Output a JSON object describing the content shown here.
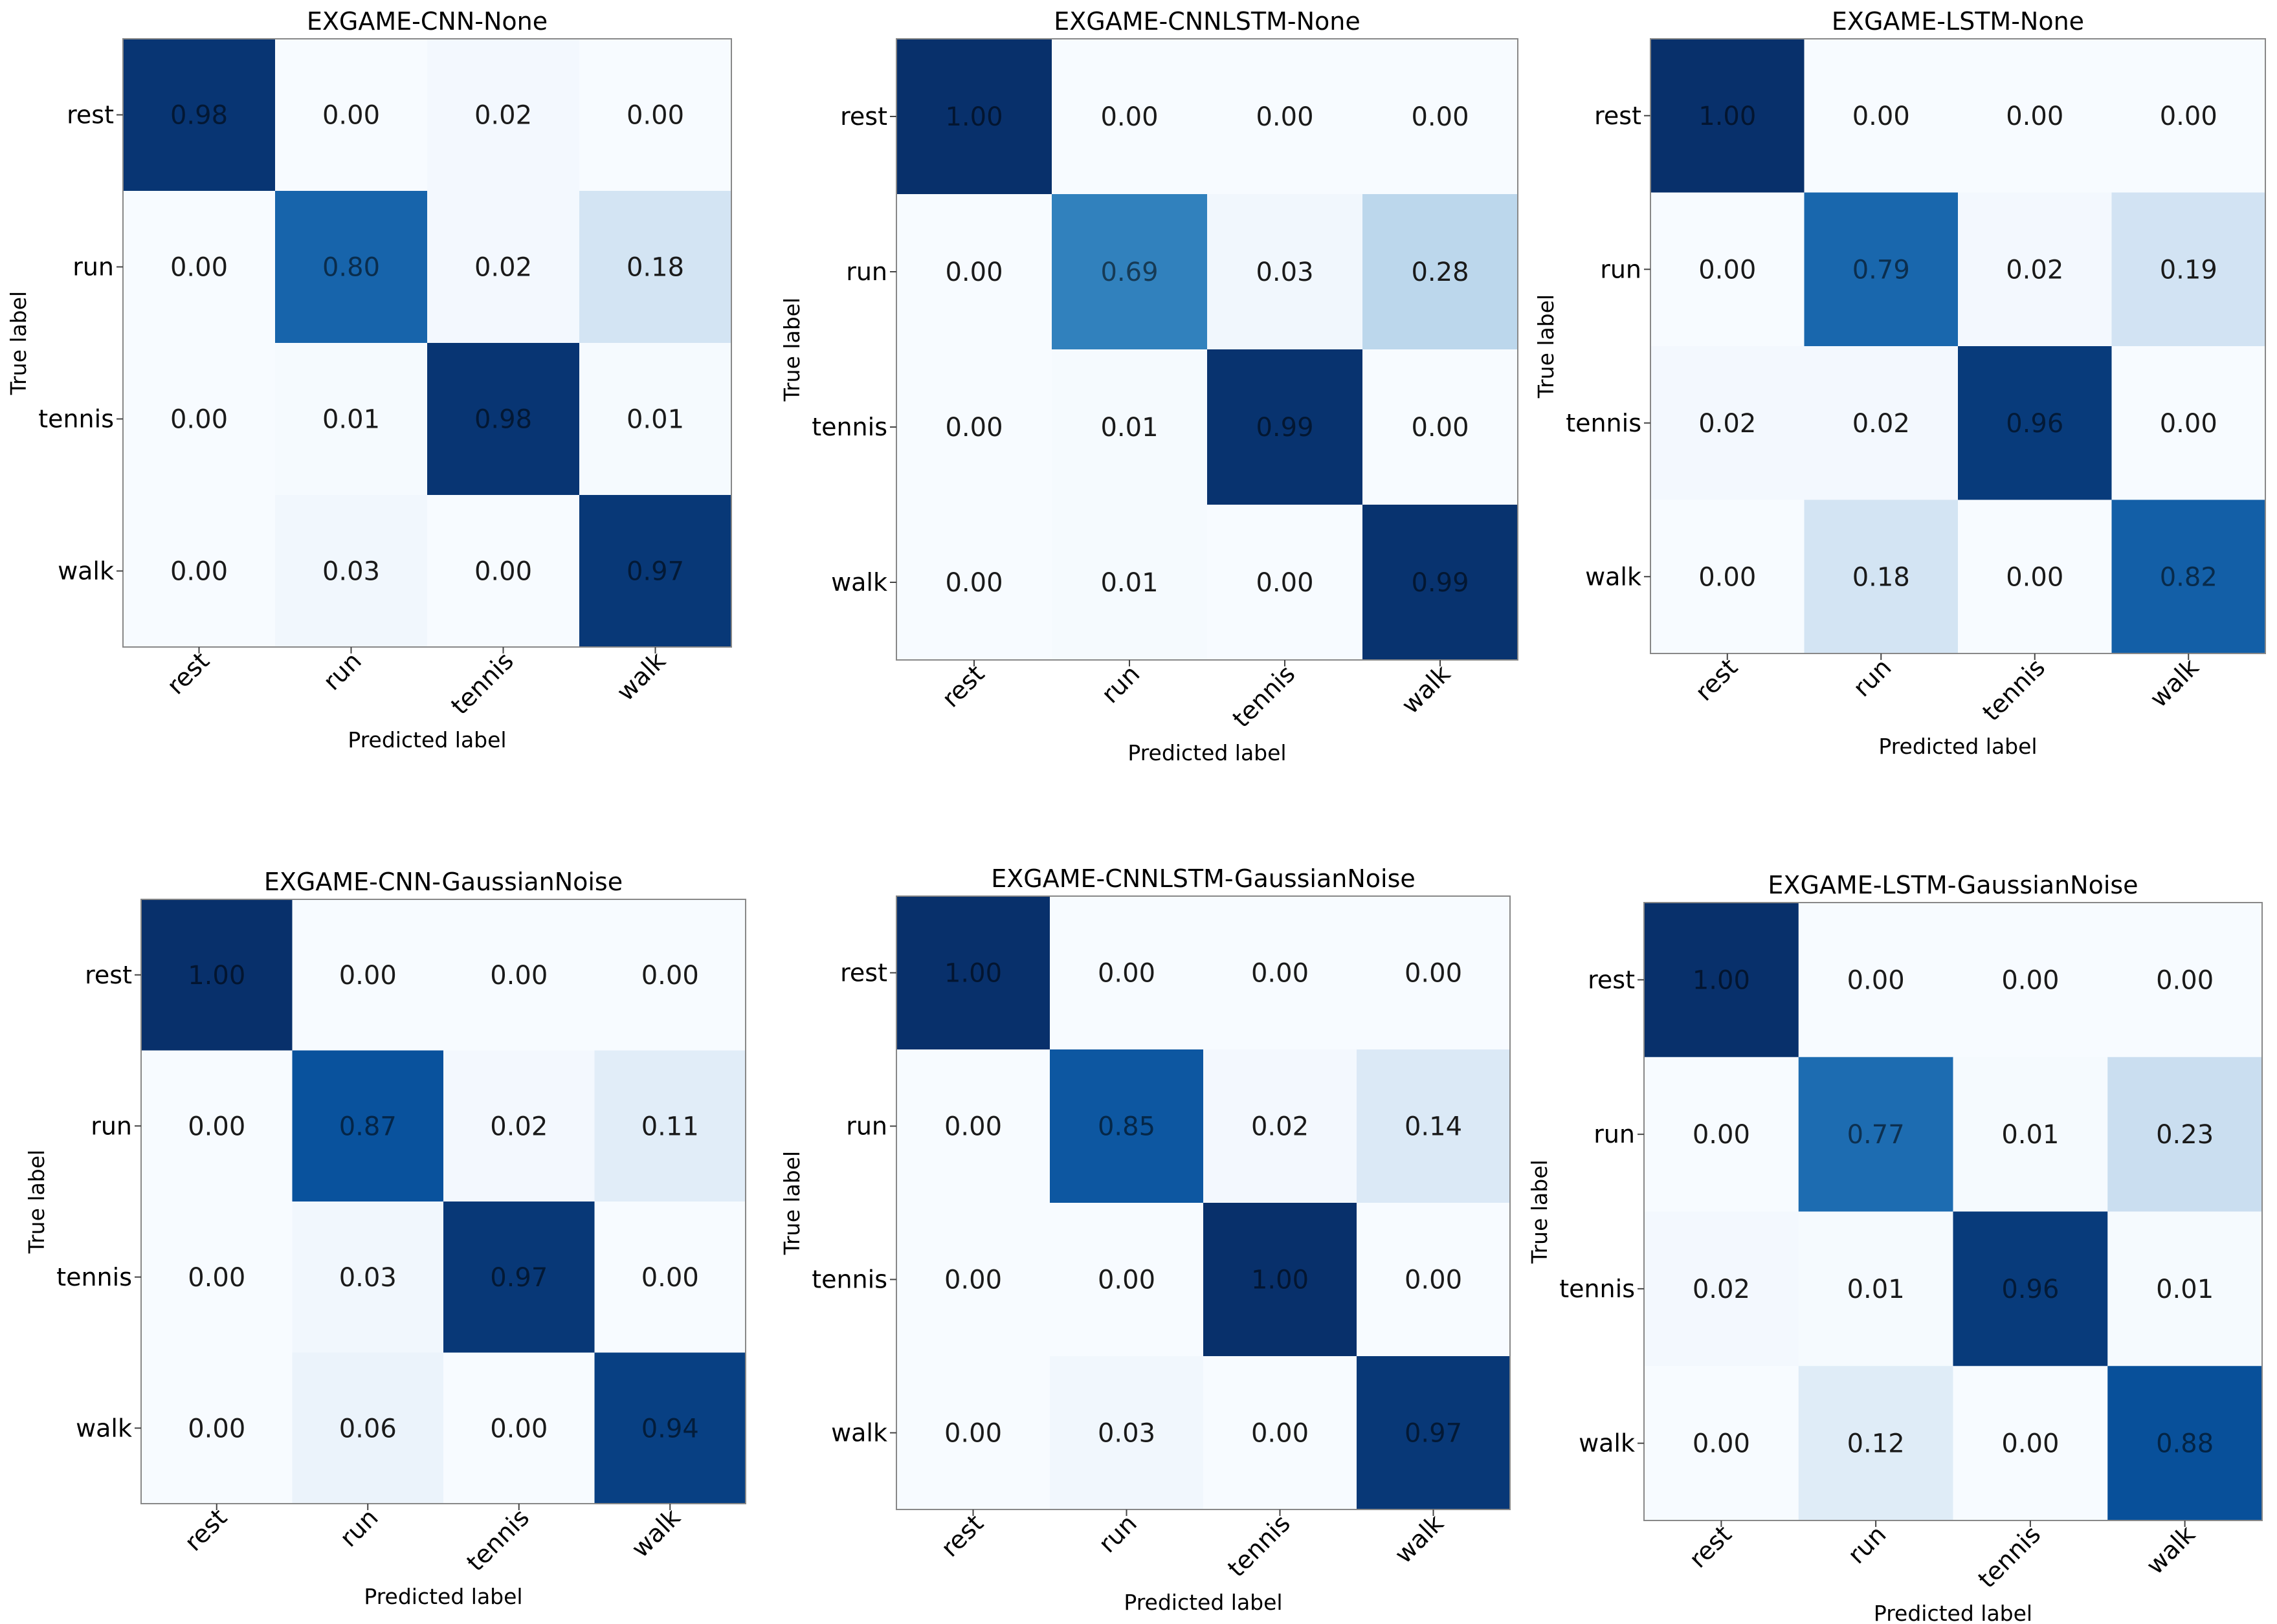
{
  "chart_data": [
    {
      "type": "heatmap",
      "title": "EXGAME-CNN-None",
      "xlabel": "Predicted label",
      "ylabel": "True label",
      "x_categories": [
        "rest",
        "run",
        "tennis",
        "walk"
      ],
      "y_categories": [
        "rest",
        "run",
        "tennis",
        "walk"
      ],
      "values": [
        [
          0.98,
          0.0,
          0.02,
          0.0
        ],
        [
          0.0,
          0.8,
          0.02,
          0.18
        ],
        [
          0.0,
          0.01,
          0.98,
          0.01
        ],
        [
          0.0,
          0.03,
          0.0,
          0.97
        ]
      ],
      "colormap": "Blues"
    },
    {
      "type": "heatmap",
      "title": "EXGAME-CNNLSTM-None",
      "xlabel": "Predicted label",
      "ylabel": "True label",
      "x_categories": [
        "rest",
        "run",
        "tennis",
        "walk"
      ],
      "y_categories": [
        "rest",
        "run",
        "tennis",
        "walk"
      ],
      "values": [
        [
          1.0,
          0.0,
          0.0,
          0.0
        ],
        [
          0.0,
          0.69,
          0.03,
          0.28
        ],
        [
          0.0,
          0.01,
          0.99,
          0.0
        ],
        [
          0.0,
          0.01,
          0.0,
          0.99
        ]
      ],
      "colormap": "Blues"
    },
    {
      "type": "heatmap",
      "title": "EXGAME-LSTM-None",
      "xlabel": "Predicted label",
      "ylabel": "True label",
      "x_categories": [
        "rest",
        "run",
        "tennis",
        "walk"
      ],
      "y_categories": [
        "rest",
        "run",
        "tennis",
        "walk"
      ],
      "values": [
        [
          1.0,
          0.0,
          0.0,
          0.0
        ],
        [
          0.0,
          0.79,
          0.02,
          0.19
        ],
        [
          0.02,
          0.02,
          0.96,
          0.0
        ],
        [
          0.0,
          0.18,
          0.0,
          0.82
        ]
      ],
      "colormap": "Blues"
    },
    {
      "type": "heatmap",
      "title": "EXGAME-CNN-GaussianNoise",
      "xlabel": "Predicted label",
      "ylabel": "True label",
      "x_categories": [
        "rest",
        "run",
        "tennis",
        "walk"
      ],
      "y_categories": [
        "rest",
        "run",
        "tennis",
        "walk"
      ],
      "values": [
        [
          1.0,
          0.0,
          0.0,
          0.0
        ],
        [
          0.0,
          0.87,
          0.02,
          0.11
        ],
        [
          0.0,
          0.03,
          0.97,
          0.0
        ],
        [
          0.0,
          0.06,
          0.0,
          0.94
        ]
      ],
      "colormap": "Blues"
    },
    {
      "type": "heatmap",
      "title": "EXGAME-CNNLSTM-GaussianNoise",
      "xlabel": "Predicted label",
      "ylabel": "True label",
      "x_categories": [
        "rest",
        "run",
        "tennis",
        "walk"
      ],
      "y_categories": [
        "rest",
        "run",
        "tennis",
        "walk"
      ],
      "values": [
        [
          1.0,
          0.0,
          0.0,
          0.0
        ],
        [
          0.0,
          0.85,
          0.02,
          0.14
        ],
        [
          0.0,
          0.0,
          1.0,
          0.0
        ],
        [
          0.0,
          0.03,
          0.0,
          0.97
        ]
      ],
      "colormap": "Blues"
    },
    {
      "type": "heatmap",
      "title": "EXGAME-LSTM-GaussianNoise",
      "xlabel": "Predicted label",
      "ylabel": "True label",
      "x_categories": [
        "rest",
        "run",
        "tennis",
        "walk"
      ],
      "y_categories": [
        "rest",
        "run",
        "tennis",
        "walk"
      ],
      "values": [
        [
          1.0,
          0.0,
          0.0,
          0.0
        ],
        [
          0.0,
          0.77,
          0.01,
          0.23
        ],
        [
          0.02,
          0.01,
          0.96,
          0.01
        ],
        [
          0.0,
          0.12,
          0.0,
          0.88
        ]
      ],
      "colormap": "Blues"
    }
  ]
}
